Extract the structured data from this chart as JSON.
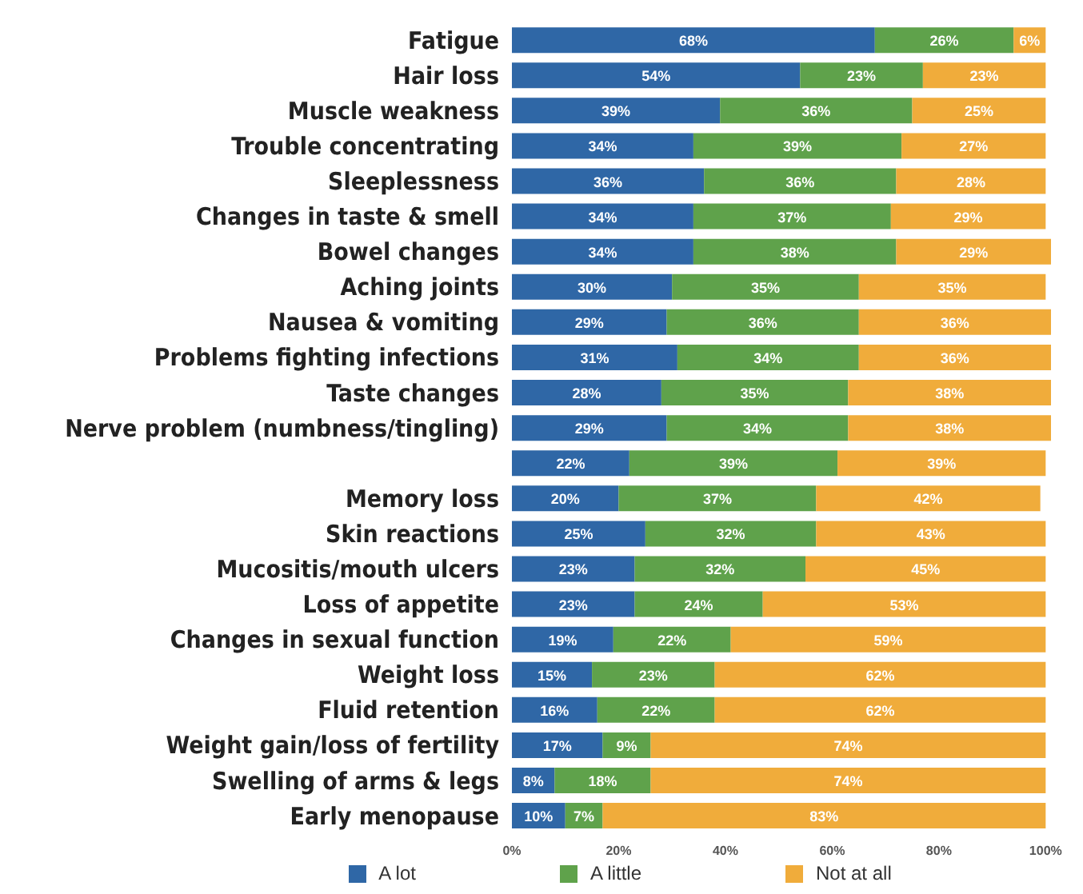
{
  "chart_data": {
    "type": "bar",
    "orientation": "horizontal",
    "stacked": true,
    "categories": [
      "Fatigue",
      "Hair loss",
      "Muscle weakness",
      "Trouble concentrating",
      "Sleeplessness",
      "Changes in taste & smell",
      "Bowel changes",
      "Aching joints",
      "Nausea & vomiting",
      "Problems fighting infections",
      "Taste changes",
      "Nerve problem (numbness/tingling)",
      null,
      "Memory loss",
      "Skin reactions",
      "Mucositis/mouth ulcers",
      "Loss of appetite",
      "Changes in sexual function",
      "Weight loss",
      "Fluid retention",
      "Weight gain/loss of fertility",
      "Swelling of arms & legs",
      "Early menopause"
    ],
    "series": [
      {
        "name": "A lot",
        "color": "#2f67a6",
        "values": [
          68,
          54,
          39,
          34,
          36,
          34,
          34,
          30,
          29,
          31,
          28,
          29,
          22,
          20,
          25,
          23,
          23,
          19,
          15,
          16,
          17,
          8,
          10
        ],
        "value_labels": [
          "68%",
          "54%",
          "39%",
          "34%",
          "36%",
          "34%",
          "34%",
          "30%",
          "29%",
          "31%",
          "28%",
          "29%",
          "22%",
          "20%",
          "25%",
          "23%",
          "23%",
          "19%",
          "15%",
          "16%",
          "17%",
          "8%",
          "10%"
        ]
      },
      {
        "name": "A little",
        "color": "#5fa24b",
        "values": [
          26,
          23,
          36,
          39,
          36,
          37,
          38,
          35,
          36,
          34,
          35,
          34,
          39,
          37,
          32,
          32,
          24,
          22,
          23,
          22,
          9,
          18,
          7
        ],
        "value_labels": [
          "26%",
          "23%",
          "36%",
          "39%",
          "36%",
          "37%",
          "38%",
          "35%",
          "36%",
          "34%",
          "35%",
          "34%",
          "39%",
          "37%",
          "32%",
          "32%",
          "24%",
          "22%",
          "23%",
          "22%",
          "9%",
          "18%",
          "7%"
        ]
      },
      {
        "name": "Not at all",
        "color": "#f0ac3b",
        "values": [
          6,
          23,
          25,
          27,
          28,
          29,
          29,
          35,
          36,
          36,
          38,
          38,
          39,
          42,
          43,
          45,
          53,
          59,
          62,
          62,
          74,
          74,
          83
        ],
        "value_labels": [
          "6%",
          "23%",
          "25%",
          "27%",
          "28%",
          "29%",
          "29%",
          "35%",
          "36%",
          "36%",
          "38%",
          "38%",
          "39%",
          "42%",
          "43%",
          "45%",
          "53%",
          "59%",
          "62%",
          "62%",
          "74%",
          "74%",
          "83%"
        ]
      }
    ],
    "xlim": [
      0,
      101
    ],
    "xticks": [
      {
        "value": 0,
        "label": "0%"
      },
      {
        "value": 20,
        "label": "20%"
      },
      {
        "value": 40,
        "label": "40%"
      },
      {
        "value": 60,
        "label": "60%"
      },
      {
        "value": 80,
        "label": "80%"
      },
      {
        "value": 100,
        "label": "100%"
      }
    ],
    "grid": false,
    "legend": "bottom"
  }
}
